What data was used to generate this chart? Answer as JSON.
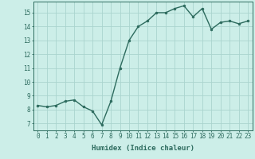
{
  "x": [
    0,
    1,
    2,
    3,
    4,
    5,
    6,
    7,
    8,
    9,
    10,
    11,
    12,
    13,
    14,
    15,
    16,
    17,
    18,
    19,
    20,
    21,
    22,
    23
  ],
  "y": [
    8.3,
    8.2,
    8.3,
    8.6,
    8.7,
    8.2,
    7.9,
    6.9,
    8.6,
    11.0,
    13.0,
    14.0,
    14.4,
    15.0,
    15.0,
    15.3,
    15.5,
    14.7,
    15.3,
    13.8,
    14.3,
    14.4,
    14.2,
    14.4
  ],
  "line_color": "#2d6b5e",
  "marker": "o",
  "marker_size": 2.0,
  "line_width": 1.0,
  "bg_color": "#cceee8",
  "grid_color": "#aad4ce",
  "xlabel": "Humidex (Indice chaleur)",
  "ylim": [
    6.5,
    15.8
  ],
  "xlim": [
    -0.5,
    23.5
  ],
  "yticks": [
    7,
    8,
    9,
    10,
    11,
    12,
    13,
    14,
    15
  ],
  "xticks": [
    0,
    1,
    2,
    3,
    4,
    5,
    6,
    7,
    8,
    9,
    10,
    11,
    12,
    13,
    14,
    15,
    16,
    17,
    18,
    19,
    20,
    21,
    22,
    23
  ],
  "tick_color": "#2d6b5e",
  "xlabel_fontsize": 6.5,
  "tick_fontsize": 5.5,
  "spine_color": "#2d6b5e"
}
